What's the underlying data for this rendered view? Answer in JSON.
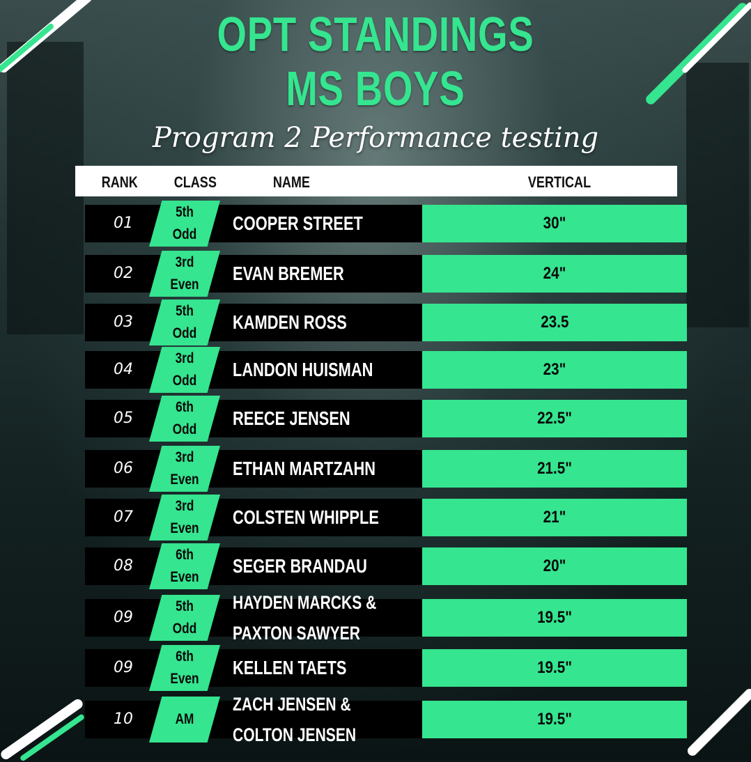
{
  "colors": {
    "accent": "#35e58f",
    "bar": "#000000",
    "header_bg": "#ffffff"
  },
  "title_line1": "OPT STANDINGS",
  "title_line2": "MS BOYS",
  "subtitle": "Program 2 Performance testing",
  "columns": {
    "rank": "RANK",
    "class": "CLASS",
    "name": "NAME",
    "vertical": "VERTICAL"
  },
  "rows": [
    {
      "rank": "01",
      "class_year": "5th",
      "class_group": "Odd",
      "name1": "COOPER STREET",
      "name2": "",
      "vertical": "30\""
    },
    {
      "rank": "02",
      "class_year": "3rd",
      "class_group": "Even",
      "name1": "EVAN BREMER",
      "name2": "",
      "vertical": "24\""
    },
    {
      "rank": "03",
      "class_year": "5th",
      "class_group": "Odd",
      "name1": "KAMDEN ROSS",
      "name2": "",
      "vertical": "23.5"
    },
    {
      "rank": "04",
      "class_year": "3rd",
      "class_group": "Odd",
      "name1": "LANDON HUISMAN",
      "name2": "",
      "vertical": "23\""
    },
    {
      "rank": "05",
      "class_year": "6th",
      "class_group": "Odd",
      "name1": "REECE JENSEN",
      "name2": "",
      "vertical": "22.5\""
    },
    {
      "rank": "06",
      "class_year": "3rd",
      "class_group": "Even",
      "name1": "ETHAN MARTZAHN",
      "name2": "",
      "vertical": "21.5\""
    },
    {
      "rank": "07",
      "class_year": "3rd",
      "class_group": "Even",
      "name1": "COLSTEN WHIPPLE",
      "name2": "",
      "vertical": "21\""
    },
    {
      "rank": "08",
      "class_year": "6th",
      "class_group": "Even",
      "name1": "SEGER BRANDAU",
      "name2": "",
      "vertical": "20\""
    },
    {
      "rank": "09",
      "class_year": "5th",
      "class_group": "Odd",
      "name1": "HAYDEN MARCKS &",
      "name2": "PAXTON SAWYER",
      "vertical": "19.5\""
    },
    {
      "rank": "09",
      "class_year": "6th",
      "class_group": "Even",
      "name1": "KELLEN TAETS",
      "name2": "",
      "vertical": "19.5\""
    },
    {
      "rank": "10",
      "class_year": "AM",
      "class_group": "",
      "name1": "ZACH JENSEN &",
      "name2": "COLTON JENSEN",
      "vertical": "19.5\""
    }
  ]
}
